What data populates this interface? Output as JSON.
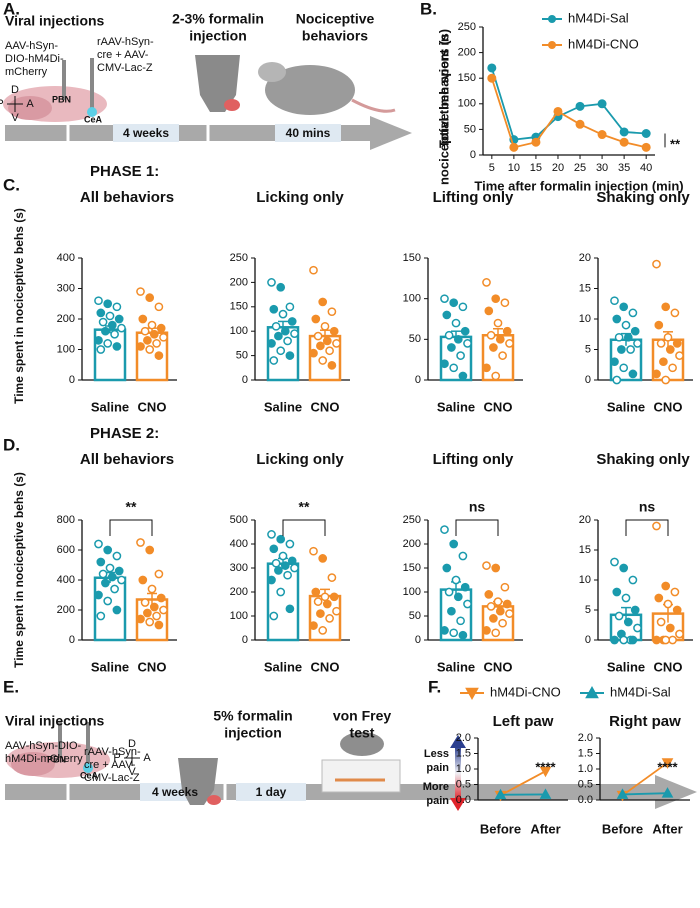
{
  "panel_labels": [
    "A.",
    "B.",
    "C.",
    "D.",
    "E.",
    "F."
  ],
  "schematic_a": {
    "step1": "Viral injections",
    "virus1": [
      "AAV-hSyn-",
      "DIO-hM4Di-",
      "mCherry"
    ],
    "virus2": [
      "rAAV-hSyn-",
      "cre + AAV-",
      "CMV-Lac-Z"
    ],
    "step2": [
      "2-3% formalin",
      "injection"
    ],
    "step3": [
      "Nociceptive",
      "behaviors"
    ],
    "duration1": "4 weeks",
    "duration2": "40 mins",
    "region1": "PBN",
    "region2": "CeA",
    "compass": [
      "D",
      "P",
      "A",
      "V"
    ]
  },
  "phase1": "PHASE 1:",
  "phase2": "PHASE 2:",
  "ylabel_c": "Time spent in nociceptive behs (s)",
  "ylabel_d": "Time spent in nociceptive behs (s)",
  "schematic_e": {
    "step1": "Viral injections",
    "virus1": [
      "AAV-hSyn-DIO-",
      "hM4Di-mCherry"
    ],
    "virus2": [
      "rAAV-hSyn-",
      "cre + AAV-",
      "CMV-Lac-Z"
    ],
    "step2": [
      "5% formalin",
      "injection"
    ],
    "step3": [
      "von Frey",
      "test"
    ],
    "duration1": "4 weeks",
    "duration2": "1 day",
    "region1": "PBN",
    "region2": "CeA",
    "compass": [
      "D",
      "P",
      "A",
      "V"
    ]
  },
  "pain_scale": {
    "top": [
      "Less",
      "pain"
    ],
    "bottom": [
      "More",
      "pain"
    ]
  },
  "chart_data": [
    {
      "type": "line",
      "ylabel": [
        "Total time spent in",
        "nociceptive behaviors (s)"
      ],
      "xlabel": "Time after formalin injection (min)",
      "x": [
        5,
        10,
        15,
        20,
        25,
        30,
        35,
        40
      ],
      "xlim": [
        3,
        42
      ],
      "xticks": [
        5,
        10,
        15,
        20,
        25,
        30,
        35,
        40
      ],
      "ylim": [
        0,
        250
      ],
      "yticks": [
        0,
        50,
        100,
        150,
        200,
        250
      ],
      "legend": "upper right",
      "annotation": "**",
      "series": [
        {
          "name": "hM4Di-Sal",
          "color": "#1a9aad",
          "marker": "circle",
          "values": [
            170,
            30,
            35,
            75,
            95,
            100,
            45,
            42
          ]
        },
        {
          "name": "hM4Di-CNO",
          "color": "#f28c28",
          "marker": "circle",
          "values": [
            150,
            15,
            25,
            85,
            60,
            40,
            25,
            15
          ]
        }
      ]
    },
    {
      "type": "bar",
      "title": "All behaviors",
      "categories": [
        "Saline",
        "CNO"
      ],
      "colors": [
        "#1a9aad",
        "#f28c28"
      ],
      "values": [
        165,
        155
      ],
      "errors": [
        12,
        15
      ],
      "points": [
        [
          260,
          250,
          240,
          220,
          210,
          200,
          190,
          180,
          170,
          160,
          150,
          130,
          120,
          110,
          100
        ],
        [
          290,
          270,
          240,
          200,
          180,
          170,
          160,
          150,
          140,
          130,
          120,
          110,
          100,
          80
        ]
      ],
      "ylim": [
        0,
        400
      ],
      "yticks": [
        0,
        100,
        200,
        300,
        400
      ]
    },
    {
      "type": "bar",
      "title": "Licking only",
      "categories": [
        "Saline",
        "CNO"
      ],
      "colors": [
        "#1a9aad",
        "#f28c28"
      ],
      "values": [
        108,
        90
      ],
      "errors": [
        12,
        12
      ],
      "points": [
        [
          200,
          190,
          150,
          145,
          135,
          120,
          110,
          100,
          95,
          90,
          80,
          75,
          60,
          50,
          40
        ],
        [
          225,
          160,
          140,
          125,
          110,
          100,
          90,
          80,
          75,
          70,
          60,
          55,
          40,
          30
        ]
      ],
      "ylim": [
        0,
        250
      ],
      "yticks": [
        0,
        50,
        100,
        150,
        200,
        250
      ]
    },
    {
      "type": "bar",
      "title": "Lifting only",
      "categories": [
        "Saline",
        "CNO"
      ],
      "colors": [
        "#1a9aad",
        "#f28c28"
      ],
      "values": [
        53,
        55
      ],
      "errors": [
        7,
        8
      ],
      "points": [
        [
          100,
          95,
          90,
          80,
          70,
          60,
          55,
          50,
          45,
          40,
          30,
          20,
          15,
          5
        ],
        [
          120,
          100,
          95,
          85,
          70,
          60,
          55,
          50,
          45,
          40,
          30,
          15,
          5
        ]
      ],
      "ylim": [
        0,
        150
      ],
      "yticks": [
        0,
        50,
        100,
        150
      ]
    },
    {
      "type": "bar",
      "title": "Shaking only",
      "categories": [
        "Saline",
        "CNO"
      ],
      "colors": [
        "#1a9aad",
        "#f28c28"
      ],
      "values": [
        6.6,
        6.6
      ],
      "errors": [
        1,
        1.3
      ],
      "points": [
        [
          13,
          12,
          11,
          10,
          9,
          8,
          7,
          7,
          6,
          5,
          5,
          3,
          2,
          1,
          0
        ],
        [
          19,
          12,
          11,
          9,
          7,
          6,
          6,
          5,
          4,
          3,
          2,
          1,
          0
        ]
      ],
      "ylim": [
        0,
        20
      ],
      "yticks": [
        0,
        5,
        10,
        15,
        20
      ]
    },
    {
      "type": "bar",
      "title": "All behaviors",
      "categories": [
        "Saline",
        "CNO"
      ],
      "colors": [
        "#1a9aad",
        "#f28c28"
      ],
      "values": [
        415,
        270
      ],
      "errors": [
        35,
        40
      ],
      "annotation": "**",
      "points": [
        [
          640,
          600,
          560,
          520,
          480,
          460,
          440,
          420,
          400,
          380,
          340,
          300,
          260,
          200,
          160
        ],
        [
          650,
          600,
          440,
          400,
          340,
          280,
          250,
          220,
          200,
          180,
          160,
          140,
          120,
          100
        ]
      ],
      "ylim": [
        0,
        800
      ],
      "yticks": [
        0,
        200,
        400,
        600,
        800
      ]
    },
    {
      "type": "bar",
      "title": "Licking only",
      "categories": [
        "Saline",
        "CNO"
      ],
      "colors": [
        "#1a9aad",
        "#f28c28"
      ],
      "values": [
        318,
        183
      ],
      "errors": [
        22,
        28
      ],
      "annotation": "**",
      "points": [
        [
          440,
          420,
          400,
          380,
          350,
          330,
          320,
          310,
          300,
          290,
          270,
          250,
          200,
          130,
          100
        ],
        [
          370,
          340,
          260,
          200,
          180,
          180,
          160,
          150,
          120,
          110,
          90,
          60,
          40
        ]
      ],
      "ylim": [
        0,
        500
      ],
      "yticks": [
        0,
        100,
        200,
        300,
        400,
        500
      ]
    },
    {
      "type": "bar",
      "title": "Lifting only",
      "categories": [
        "Saline",
        "CNO"
      ],
      "colors": [
        "#1a9aad",
        "#f28c28"
      ],
      "values": [
        105,
        70
      ],
      "errors": [
        16,
        10
      ],
      "annotation": "ns",
      "points": [
        [
          230,
          200,
          175,
          150,
          125,
          110,
          100,
          90,
          75,
          60,
          40,
          20,
          15,
          10
        ],
        [
          155,
          150,
          110,
          95,
          80,
          75,
          70,
          60,
          55,
          45,
          35,
          20,
          15
        ]
      ],
      "ylim": [
        0,
        250
      ],
      "yticks": [
        0,
        50,
        100,
        150,
        200,
        250
      ]
    },
    {
      "type": "bar",
      "title": "Shaking only",
      "categories": [
        "Saline",
        "CNO"
      ],
      "colors": [
        "#1a9aad",
        "#f28c28"
      ],
      "values": [
        4.2,
        4.4
      ],
      "errors": [
        1.2,
        1.5
      ],
      "annotation": "ns",
      "points": [
        [
          13,
          12,
          10,
          8,
          7,
          5,
          4,
          3,
          2,
          1,
          0,
          0,
          0,
          0
        ],
        [
          19,
          9,
          8,
          7,
          6,
          5,
          3,
          2,
          1,
          0,
          0,
          0,
          0
        ]
      ],
      "ylim": [
        0,
        20
      ],
      "yticks": [
        0,
        5,
        10,
        15,
        20
      ]
    },
    {
      "type": "line",
      "title": "Left paw",
      "categories": [
        "Before",
        "After"
      ],
      "annotation": "****",
      "ylim": [
        0,
        2
      ],
      "yticks": [
        {
          "value": 0,
          "label": "0.0"
        },
        {
          "value": 0.5,
          "label": "0.5"
        },
        {
          "value": 1,
          "label": "1.0"
        },
        {
          "value": 1.5,
          "label": "1.5"
        },
        {
          "value": 2,
          "label": "2.0"
        }
      ],
      "series": [
        {
          "name": "hM4Di-CNO",
          "color": "#f28c28",
          "marker": "triangle-down",
          "values": [
            0.15,
            0.93
          ]
        },
        {
          "name": "hM4Di-Sal",
          "color": "#1a9aad",
          "marker": "triangle-up",
          "values": [
            0.17,
            0.18
          ]
        }
      ]
    },
    {
      "type": "line",
      "title": "Right paw",
      "categories": [
        "Before",
        "After"
      ],
      "annotation": "****",
      "ylim": [
        0,
        2
      ],
      "yticks": [
        {
          "value": 0,
          "label": "0.0"
        },
        {
          "value": 0.5,
          "label": "0.5"
        },
        {
          "value": 1,
          "label": "1.0"
        },
        {
          "value": 1.5,
          "label": "1.5"
        },
        {
          "value": 2,
          "label": "2.0"
        }
      ],
      "series": [
        {
          "color": "#f28c28",
          "marker": "triangle-down",
          "values": [
            0.15,
            1.2
          ]
        },
        {
          "color": "#1a9aad",
          "marker": "triangle-up",
          "values": [
            0.18,
            0.22
          ]
        }
      ]
    }
  ]
}
